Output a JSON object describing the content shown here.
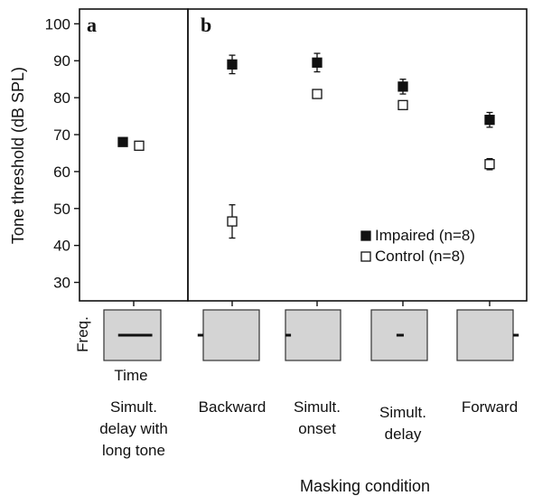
{
  "chart_data": {
    "type": "scatter",
    "ylabel": "Tone threshold (dB SPL)",
    "xlabel": "Masking condition",
    "ylim": [
      25,
      104
    ],
    "yticks": [
      30,
      40,
      50,
      60,
      70,
      80,
      90,
      100
    ],
    "grid": false,
    "legend_position": "bottom-right",
    "series_legend_labels": [
      "Impaired (n=8)",
      "Control (n=8)"
    ],
    "panels": [
      {
        "letter": "a",
        "categories": [
          "Simult. delay with long tone"
        ],
        "category_lines": [
          [
            "Simult.",
            "delay with",
            "long tone"
          ]
        ],
        "series": [
          {
            "values": [
              68
            ],
            "err": [
              0.8
            ],
            "marker": "filled-square"
          },
          {
            "values": [
              67
            ],
            "err": [
              0.8
            ],
            "marker": "open-square"
          }
        ]
      },
      {
        "letter": "b",
        "categories": [
          "Backward",
          "Simult. onset",
          "Simult. delay",
          "Forward"
        ],
        "category_lines": [
          [
            "Backward"
          ],
          [
            "Simult.",
            "onset"
          ],
          [
            "Simult.",
            "delay"
          ],
          [
            "Forward"
          ]
        ],
        "series": [
          {
            "values": [
              89,
              89.5,
              83,
              74
            ],
            "err": [
              2.5,
              2.5,
              2,
              2
            ],
            "marker": "filled-square"
          },
          {
            "values": [
              46.5,
              81,
              78,
              62
            ],
            "err": [
              4.5,
              0.8,
              0.8,
              1.5
            ],
            "marker": "open-square"
          }
        ]
      }
    ]
  },
  "schematic": {
    "freq_label": "Freq.",
    "time_label": "Time",
    "tones": [
      {
        "condition": "Simult. delay with long tone",
        "start": 0.25,
        "end": 0.85
      },
      {
        "condition": "Backward",
        "start": -0.1,
        "end": 0.0
      },
      {
        "condition": "Simult. onset",
        "start": 0.0,
        "end": 0.1
      },
      {
        "condition": "Simult. delay",
        "start": 0.45,
        "end": 0.58
      },
      {
        "condition": "Forward",
        "start": 1.0,
        "end": 1.1
      }
    ]
  },
  "colors": {
    "ink": "#111111",
    "masker_fill": "#d4d4d4",
    "open_marker_fill": "#ffffff"
  }
}
